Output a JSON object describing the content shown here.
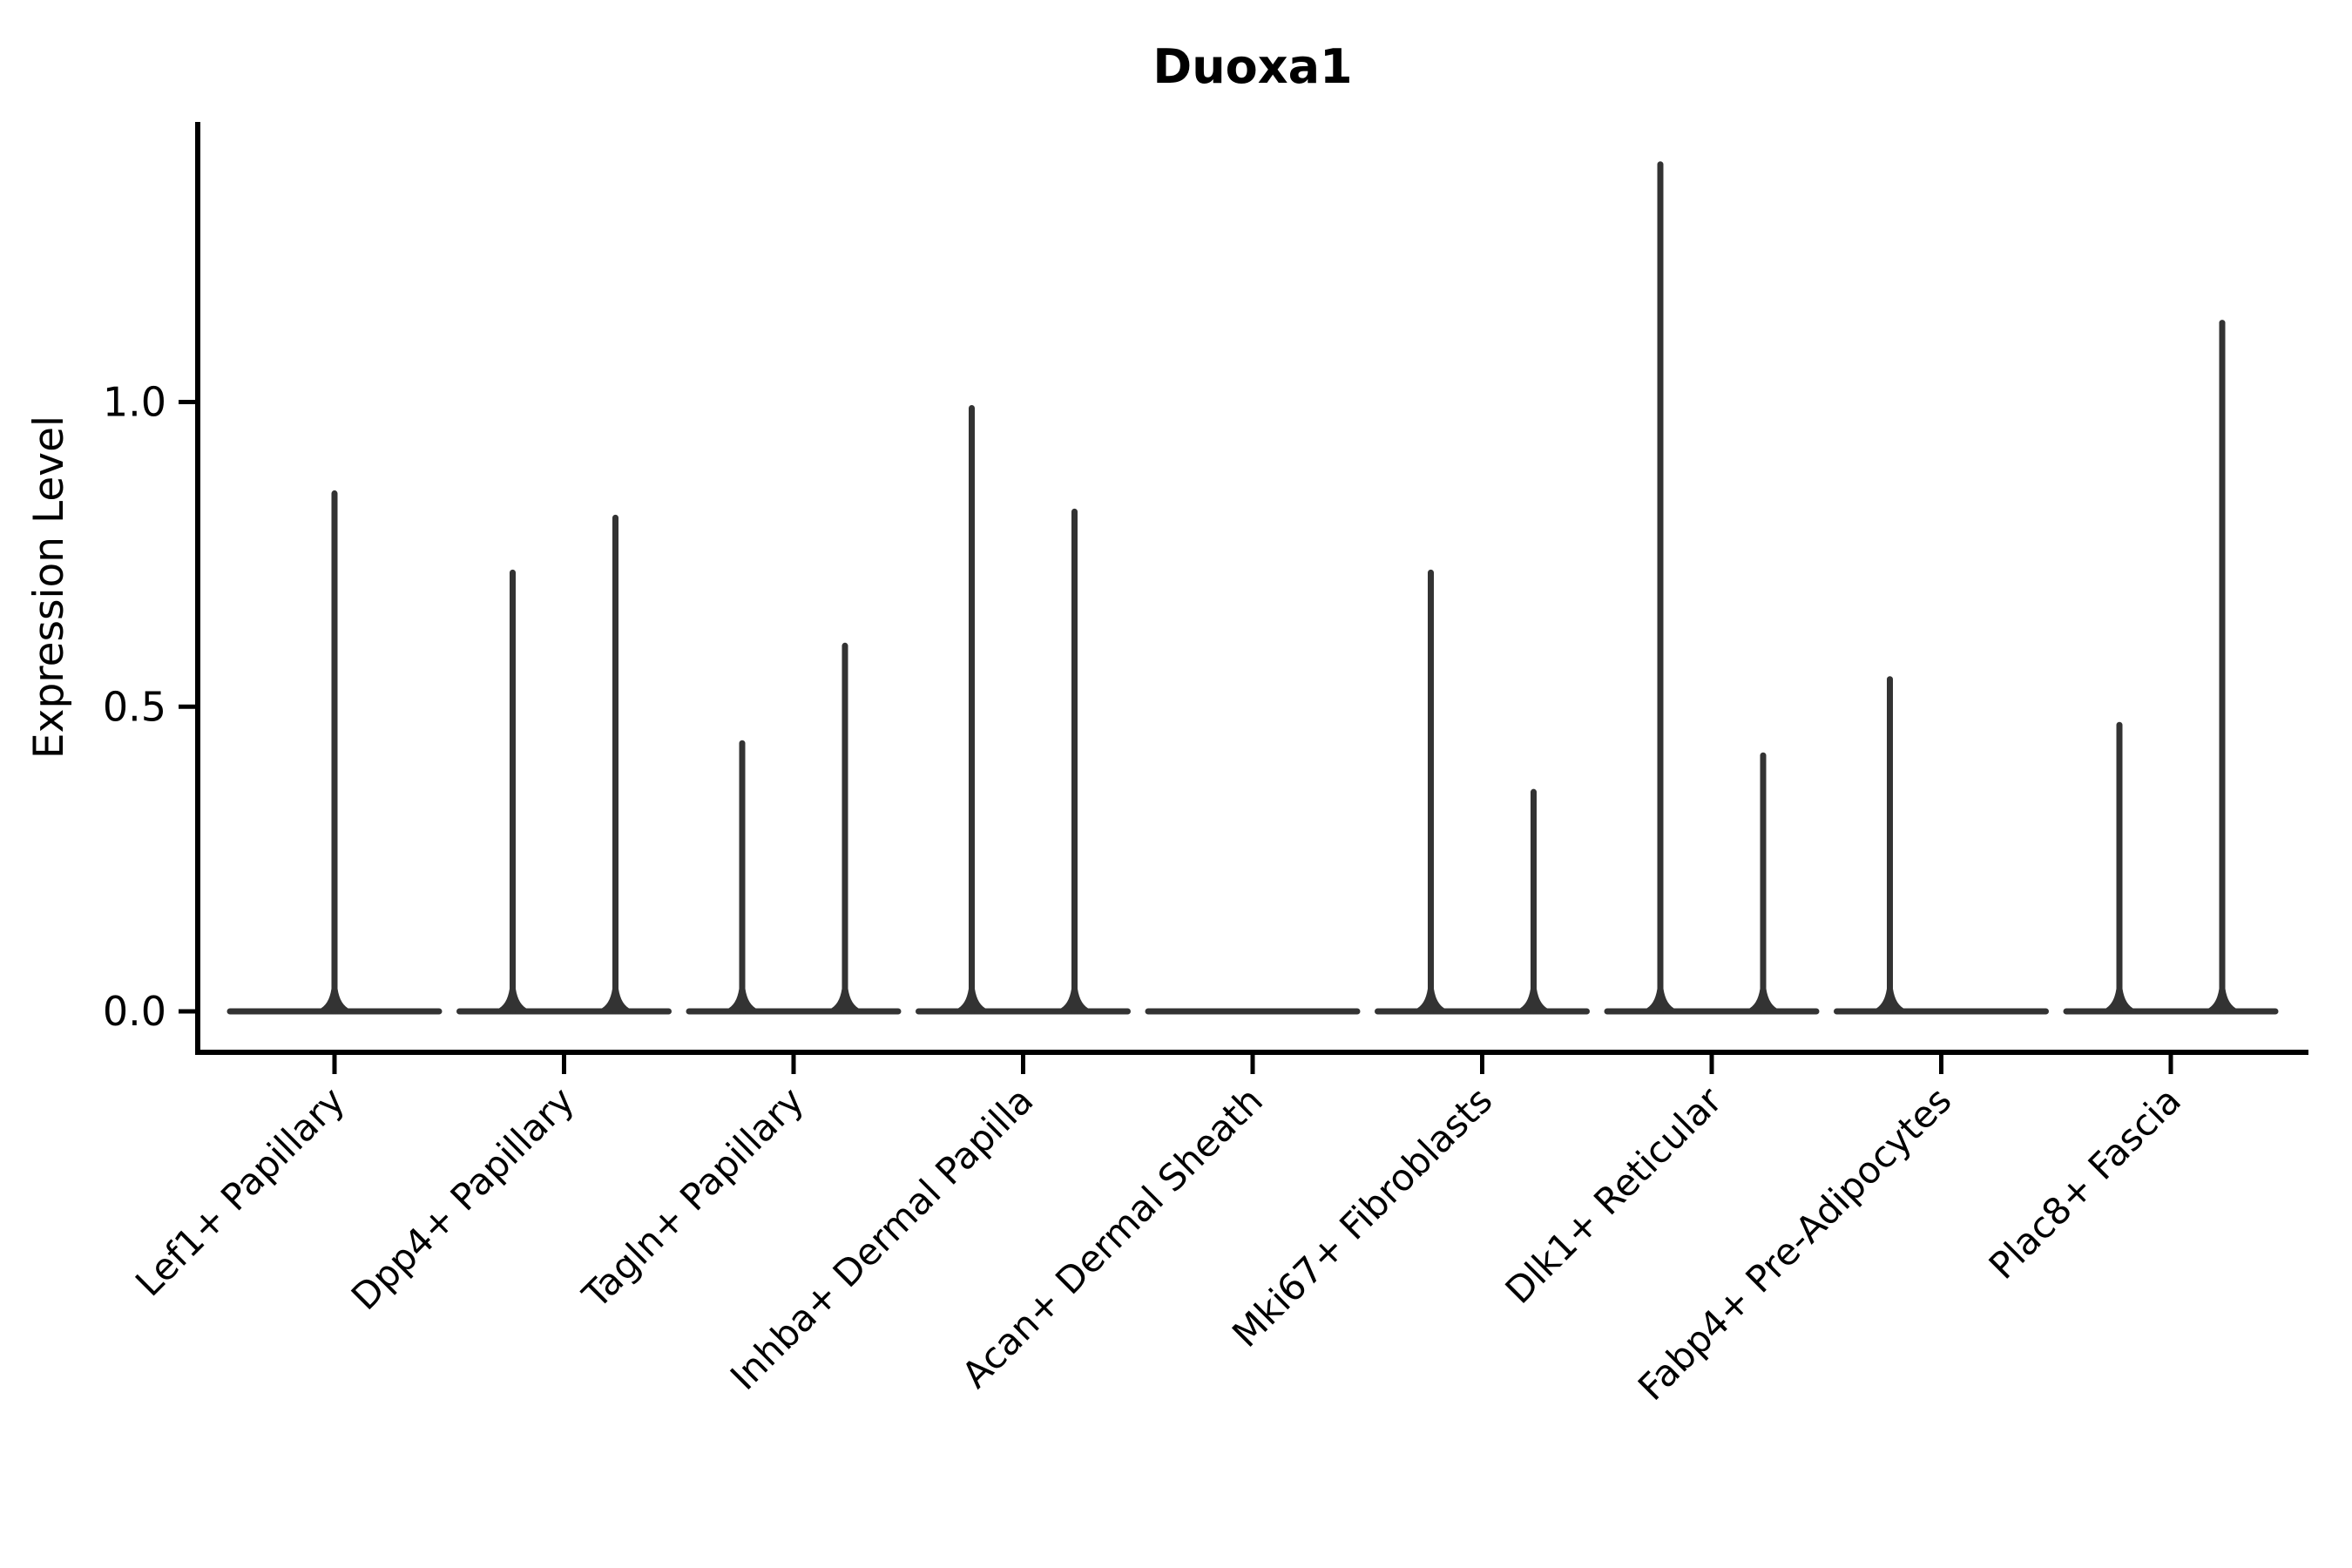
{
  "chart_data": {
    "type": "violin",
    "title": "Duoxa1",
    "ylabel": "Expression Level",
    "xlabel": "",
    "grid": false,
    "legend": null,
    "yticks": [
      {
        "label": "0.0",
        "value": 0.0
      },
      {
        "label": "0.5",
        "value": 0.5
      },
      {
        "label": "1.0",
        "value": 1.0
      }
    ],
    "ylim": [
      -0.067,
      1.46
    ],
    "x_tick_rotation": 45,
    "categories": [
      "Lef1+ Papillary",
      "Dpp4+ Papillary",
      "Tagln+ Papillary",
      "Inhba+ Dermal Papilla",
      "Acan+ Dermal Sheath",
      "Mki67+ Fibroblasts",
      "Dlk1+ Reticular",
      "Fabp4+ Pre-Adipocytes",
      "Plac8+ Fascia"
    ],
    "violins": [
      {
        "category": "Lef1+ Papillary",
        "spikes": [
          {
            "pos": "center",
            "max": 0.85
          }
        ]
      },
      {
        "category": "Dpp4+ Papillary",
        "spikes": [
          {
            "pos": "left",
            "max": 0.72
          },
          {
            "pos": "right",
            "max": 0.81
          }
        ]
      },
      {
        "category": "Tagln+ Papillary",
        "spikes": [
          {
            "pos": "left",
            "max": 0.44
          },
          {
            "pos": "right",
            "max": 0.6
          }
        ]
      },
      {
        "category": "Inhba+ Dermal Papilla",
        "spikes": [
          {
            "pos": "left",
            "max": 0.99
          },
          {
            "pos": "right",
            "max": 0.82
          }
        ]
      },
      {
        "category": "Acan+ Dermal Sheath",
        "spikes": []
      },
      {
        "category": "Mki67+ Fibroblasts",
        "spikes": [
          {
            "pos": "left",
            "max": 0.72
          },
          {
            "pos": "right",
            "max": 0.36
          }
        ]
      },
      {
        "category": "Dlk1+ Reticular",
        "spikes": [
          {
            "pos": "left",
            "max": 1.39
          },
          {
            "pos": "right",
            "max": 0.42
          }
        ]
      },
      {
        "category": "Fabp4+ Pre-Adipocytes",
        "spikes": [
          {
            "pos": "left",
            "max": 0.545
          }
        ]
      },
      {
        "category": "Plac8+ Fascia",
        "spikes": [
          {
            "pos": "left",
            "max": 0.47
          },
          {
            "pos": "right",
            "max": 1.13
          }
        ]
      }
    ],
    "colors": {
      "violin_line": "#333333",
      "axis": "#000000",
      "text": "#000000",
      "background": "#ffffff"
    }
  }
}
